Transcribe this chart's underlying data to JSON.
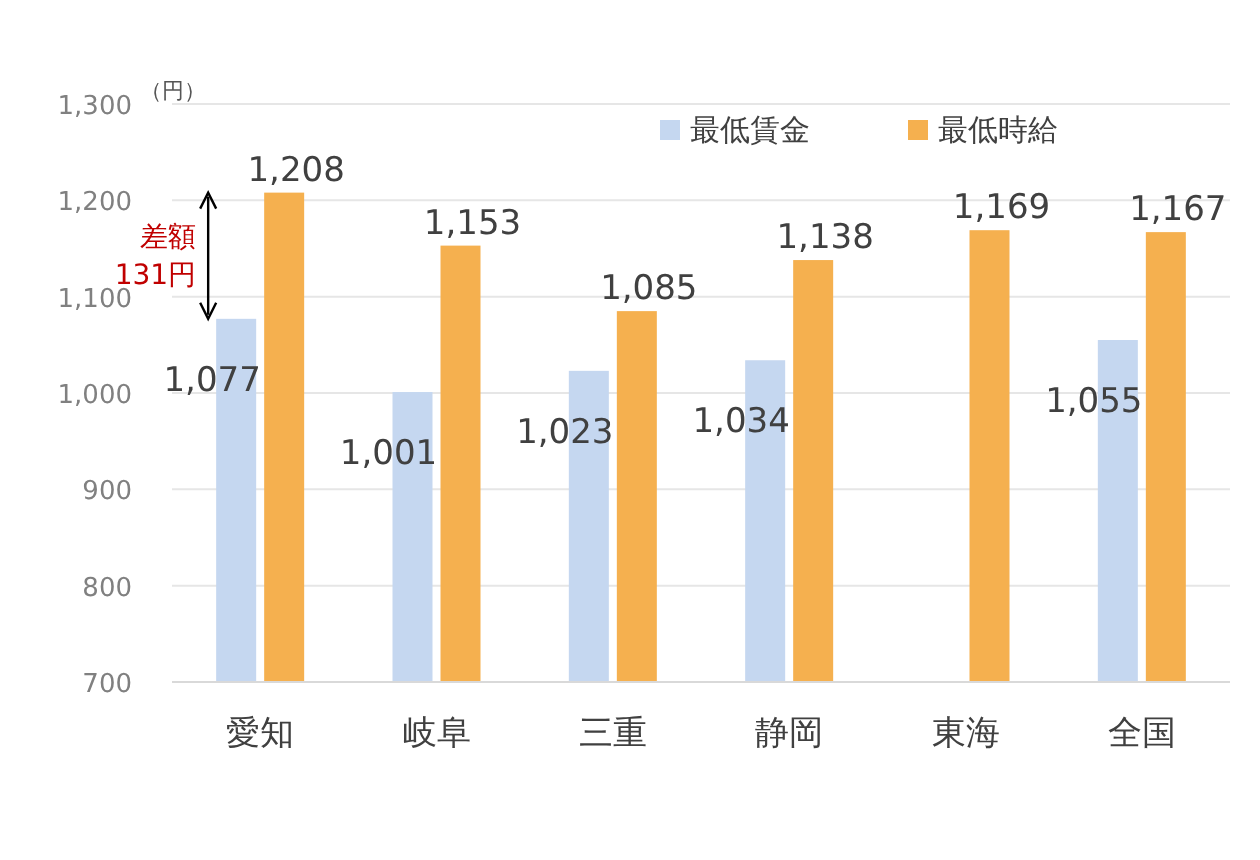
{
  "chart_data": {
    "type": "bar",
    "categories": [
      "愛知",
      "岐阜",
      "三重",
      "静岡",
      "東海",
      "全国"
    ],
    "series": [
      {
        "name": "最低賃金",
        "color": "#c5d7f0",
        "values": [
          1077,
          1001,
          1023,
          1034,
          null,
          1055
        ],
        "value_labels": [
          "1,077",
          "1,001",
          "1,023",
          "1,034",
          null,
          "1,055"
        ]
      },
      {
        "name": "最低時給",
        "color": "#f5b04f",
        "values": [
          1208,
          1153,
          1085,
          1138,
          1169,
          1167
        ],
        "value_labels": [
          "1,208",
          "1,153",
          "1,085",
          "1,138",
          "1,169",
          "1,167"
        ]
      }
    ],
    "ylabel": "（円）",
    "ylim": [
      700,
      1300
    ],
    "yticks": [
      700,
      800,
      900,
      {
        "value": 1000,
        "label": "1,000"
      },
      {
        "value": 1100,
        "label": "1,100"
      },
      {
        "value": 1200,
        "label": "1,200"
      },
      {
        "value": 1300,
        "label": "1,300"
      }
    ],
    "grid": "y",
    "legend": "top right",
    "annotations": [
      "差額 131円"
    ]
  }
}
